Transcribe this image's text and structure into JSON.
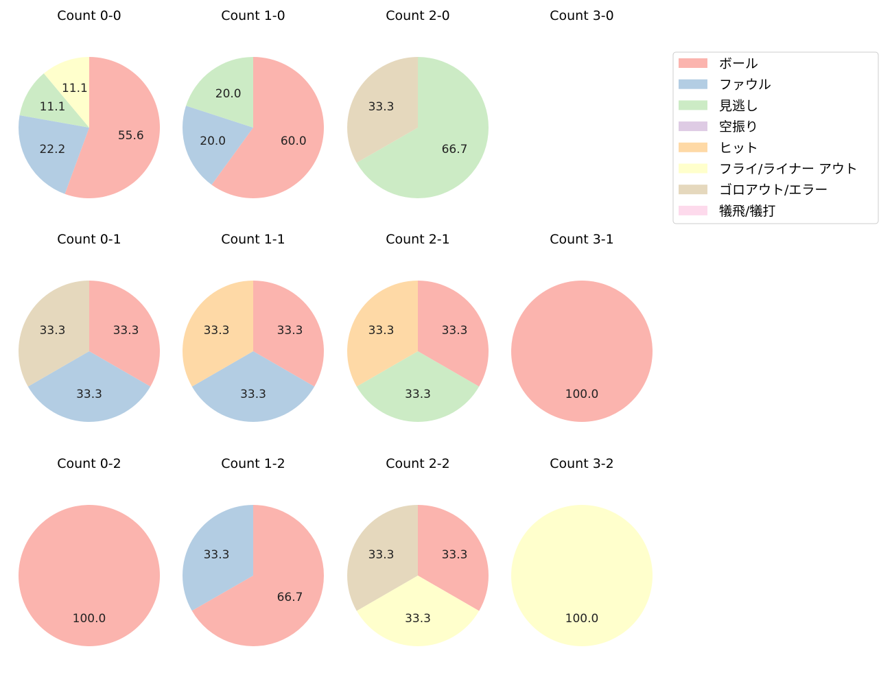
{
  "chart_data": {
    "type": "pie",
    "legend": {
      "placement": "top-right",
      "entries": [
        {
          "key": "ball",
          "label": "ボール",
          "color": "#fbb4ae"
        },
        {
          "key": "foul",
          "label": "ファウル",
          "color": "#b3cde3"
        },
        {
          "key": "called_strike",
          "label": "見逃し",
          "color": "#ccebc5"
        },
        {
          "key": "swinging_strike",
          "label": "空振り",
          "color": "#decbe4"
        },
        {
          "key": "hit",
          "label": "ヒット",
          "color": "#fed9a6"
        },
        {
          "key": "fly_liner_out",
          "label": "フライ/ライナー アウト",
          "color": "#ffffcc"
        },
        {
          "key": "ground_out_error",
          "label": "ゴロアウト/エラー",
          "color": "#e5d8bd"
        },
        {
          "key": "sacrifice",
          "label": "犠飛/犠打",
          "color": "#fddaec"
        }
      ]
    },
    "pies": [
      {
        "title": "Count 0-0",
        "slices": [
          {
            "key": "ball",
            "value": 55.6,
            "label": "55.6"
          },
          {
            "key": "foul",
            "value": 22.2,
            "label": "22.2"
          },
          {
            "key": "called_strike",
            "value": 11.1,
            "label": "11.1"
          },
          {
            "key": "fly_liner_out",
            "value": 11.1,
            "label": "11.1"
          }
        ]
      },
      {
        "title": "Count 1-0",
        "slices": [
          {
            "key": "ball",
            "value": 60.0,
            "label": "60.0"
          },
          {
            "key": "foul",
            "value": 20.0,
            "label": "20.0"
          },
          {
            "key": "called_strike",
            "value": 20.0,
            "label": "20.0"
          }
        ]
      },
      {
        "title": "Count 2-0",
        "slices": [
          {
            "key": "called_strike",
            "value": 66.7,
            "label": "66.7"
          },
          {
            "key": "ground_out_error",
            "value": 33.3,
            "label": "33.3"
          }
        ]
      },
      {
        "title": "Count 3-0",
        "slices": []
      },
      {
        "title": "Count 0-1",
        "slices": [
          {
            "key": "ball",
            "value": 33.3,
            "label": "33.3"
          },
          {
            "key": "foul",
            "value": 33.3,
            "label": "33.3"
          },
          {
            "key": "ground_out_error",
            "value": 33.3,
            "label": "33.3"
          }
        ]
      },
      {
        "title": "Count 1-1",
        "slices": [
          {
            "key": "ball",
            "value": 33.3,
            "label": "33.3"
          },
          {
            "key": "foul",
            "value": 33.3,
            "label": "33.3"
          },
          {
            "key": "hit",
            "value": 33.3,
            "label": "33.3"
          }
        ]
      },
      {
        "title": "Count 2-1",
        "slices": [
          {
            "key": "ball",
            "value": 33.3,
            "label": "33.3"
          },
          {
            "key": "called_strike",
            "value": 33.3,
            "label": "33.3"
          },
          {
            "key": "hit",
            "value": 33.3,
            "label": "33.3"
          }
        ]
      },
      {
        "title": "Count 3-1",
        "slices": [
          {
            "key": "ball",
            "value": 100.0,
            "label": "100.0"
          }
        ]
      },
      {
        "title": "Count 0-2",
        "slices": [
          {
            "key": "ball",
            "value": 100.0,
            "label": "100.0"
          }
        ]
      },
      {
        "title": "Count 1-2",
        "slices": [
          {
            "key": "ball",
            "value": 66.7,
            "label": "66.7"
          },
          {
            "key": "foul",
            "value": 33.3,
            "label": "33.3"
          }
        ]
      },
      {
        "title": "Count 2-2",
        "slices": [
          {
            "key": "ball",
            "value": 33.3,
            "label": "33.3"
          },
          {
            "key": "fly_liner_out",
            "value": 33.3,
            "label": "33.3"
          },
          {
            "key": "ground_out_error",
            "value": 33.3,
            "label": "33.3"
          }
        ]
      },
      {
        "title": "Count 3-2",
        "slices": [
          {
            "key": "fly_liner_out",
            "value": 100.0,
            "label": "100.0"
          }
        ]
      }
    ]
  }
}
